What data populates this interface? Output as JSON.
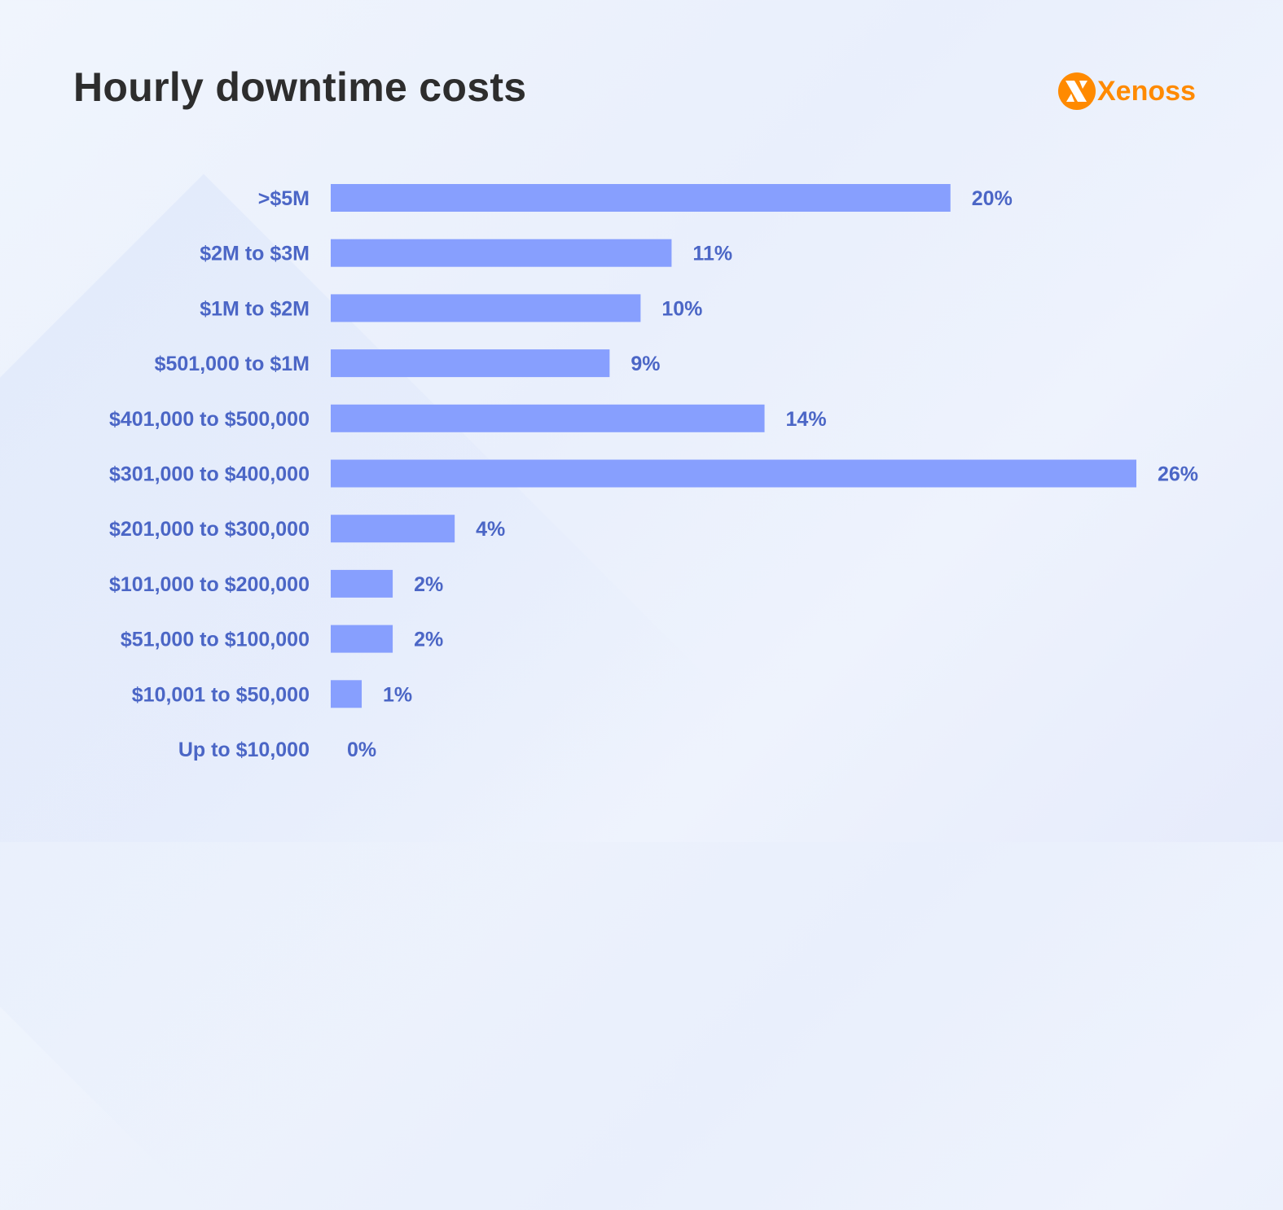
{
  "chart_data": {
    "type": "bar",
    "orientation": "horizontal",
    "title": "Hourly downtime costs",
    "categories": [
      ">$5M",
      "$2M to $3M",
      "$1M to $2M",
      "$501,000 to $1M",
      "$401,000 to $500,000",
      "$301,000 to $400,000",
      "$201,000 to $300,000",
      "$101,000 to $200,000",
      "$51,000 to $100,000",
      "$10,001 to $50,000",
      "Up to $10,000"
    ],
    "values": [
      20,
      11,
      10,
      9,
      14,
      26,
      4,
      2,
      2,
      1,
      0
    ],
    "value_labels": [
      "20%",
      "11%",
      "10%",
      "9%",
      "14%",
      "26%",
      "4%",
      "2%",
      "2%",
      "1%",
      "0%"
    ],
    "xlim": [
      0,
      26
    ],
    "grid": false,
    "colors": {
      "bar": "#879ffe",
      "label": "#4b66c6",
      "title": "#2d2d2d",
      "brand": "#ff8a00"
    }
  },
  "brand": {
    "name": "Xenoss",
    "icon": "xenoss-logo-icon"
  }
}
